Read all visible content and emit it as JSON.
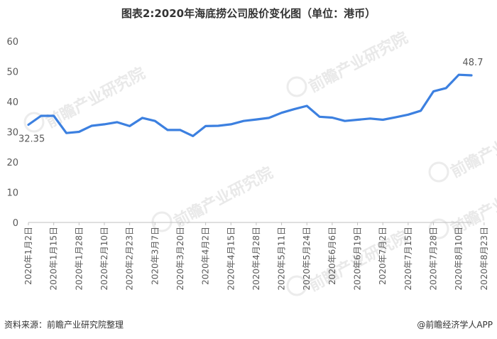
{
  "title": "图表2:2020年海底捞公司股价变化图（单位：港币）",
  "footer": {
    "source": "资料来源：前瞻产业研究院整理",
    "brand": "@前瞻经济学人APP"
  },
  "watermark": {
    "text": "前瞻产业研究院"
  },
  "chart_data": {
    "type": "line",
    "title": "图表2:2020年海底捞公司股价变化图（单位：港币）",
    "xlabel": "",
    "ylabel": "",
    "ylim": [
      0,
      60
    ],
    "yticks": [
      "0",
      "10",
      "20",
      "30",
      "40",
      "50",
      "60"
    ],
    "grid": false,
    "color": "#3c80e0",
    "x_tick_labels": [
      "2020年1月2日",
      "2020年1月15日",
      "2020年1月28日",
      "2020年2月10日",
      "2020年2月23日",
      "2020年3月7日",
      "2020年3月20日",
      "2020年4月2日",
      "2020年4月15日",
      "2020年4月28日",
      "2020年5月11日",
      "2020年5月24日",
      "2020年6月6日",
      "2020年6月19日",
      "2020年7月2日",
      "2020年7月15日",
      "2020年7月28日",
      "2020年8月10日",
      "2020年8月23日"
    ],
    "values": [
      32.35,
      35.3,
      35.3,
      29.6,
      30.0,
      32.0,
      32.5,
      33.2,
      31.9,
      34.6,
      33.6,
      30.6,
      30.6,
      28.6,
      31.9,
      32.0,
      32.5,
      33.6,
      34.1,
      34.6,
      36.3,
      37.5,
      38.6,
      35.0,
      34.7,
      33.6,
      34.0,
      34.4,
      34.0,
      34.8,
      35.7,
      37.0,
      43.4,
      44.5,
      48.9,
      48.7
    ],
    "annotations": [
      {
        "index": 0,
        "label": "32.35"
      },
      {
        "index": 35,
        "label": "48.7"
      }
    ]
  }
}
